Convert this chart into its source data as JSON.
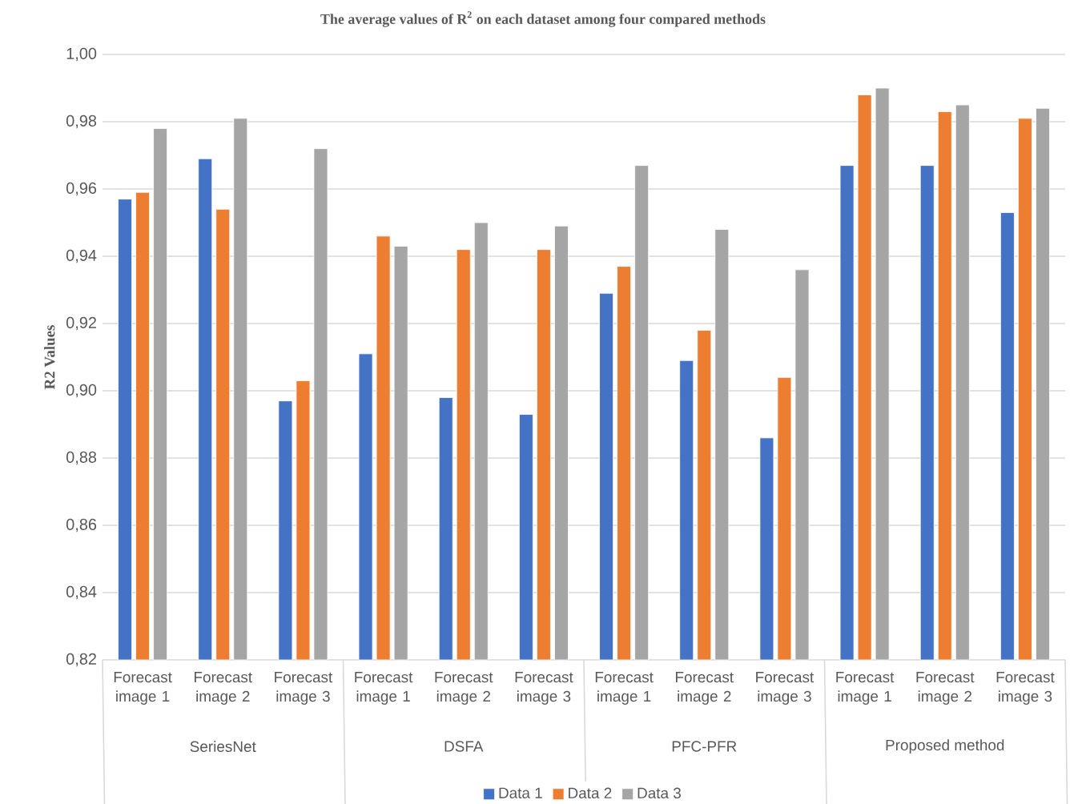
{
  "chart_data": {
    "type": "bar",
    "title": "The average values of R$^{2}$ on each dataset among four compared methods",
    "ylabel": "R2 Values",
    "categories": [
      "Forecast image 1",
      "Forecast image 2",
      "Forecast image 3",
      "Forecast image 1",
      "Forecast image 2",
      "Forecast image 3",
      "Forecast image 1",
      "Forecast image 2",
      "Forecast image 3",
      "Forecast image 1",
      "Forecast image 2",
      "Forecast image 3"
    ],
    "annotations": [
      "SeriesNet",
      "DSFA",
      "PFC-PFR",
      "Proposed method"
    ],
    "series": [
      {
        "name": "Data 1",
        "color": "#4472c4",
        "values": [
          0.957,
          0.969,
          0.897,
          0.911,
          0.898,
          0.893,
          0.929,
          0.909,
          0.886,
          0.967,
          0.967,
          0.953
        ]
      },
      {
        "name": "Data 2",
        "color": "#ed7d31",
        "values": [
          0.959,
          0.954,
          0.903,
          0.946,
          0.942,
          0.942,
          0.937,
          0.918,
          0.904,
          0.988,
          0.983,
          0.981
        ]
      },
      {
        "name": "Data 3",
        "color": "#a5a5a5",
        "values": [
          0.978,
          0.981,
          0.972,
          0.943,
          0.95,
          0.949,
          0.967,
          0.948,
          0.936,
          0.99,
          0.985,
          0.984
        ]
      }
    ],
    "ylim": [
      0.82,
      1.0
    ],
    "yticks": [
      {
        "value": 0.82,
        "label": "0,82"
      },
      {
        "value": 0.84,
        "label": "0,84"
      },
      {
        "value": 0.86,
        "label": "0,86"
      },
      {
        "value": 0.88,
        "label": "0,88"
      },
      {
        "value": 0.9,
        "label": "0,90"
      },
      {
        "value": 0.92,
        "label": "0,92"
      },
      {
        "value": 0.94,
        "label": "0,94"
      },
      {
        "value": 0.96,
        "label": "0,96"
      },
      {
        "value": 0.98,
        "label": "0,98"
      },
      {
        "value": 1.0,
        "label": "1,00"
      }
    ],
    "grid": "y",
    "legend": "bottom"
  }
}
